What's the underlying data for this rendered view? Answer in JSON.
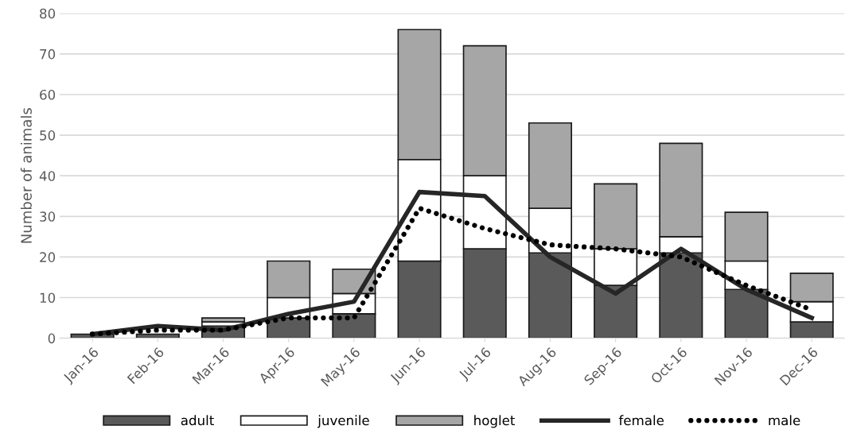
{
  "chart_data": {
    "type": "bar",
    "stacked": true,
    "ylabel": "Number of animals",
    "categories": [
      "Jan-16",
      "Feb-16",
      "Mar-16",
      "Apr-16",
      "May-16",
      "Jun-16",
      "Jul-16",
      "Aug-16",
      "Sep-16",
      "Oct-16",
      "Nov-16",
      "Dec-16"
    ],
    "series": [
      {
        "name": "adult",
        "color": "#5a5a5a",
        "values": [
          1,
          1,
          3,
          5,
          6,
          19,
          22,
          21,
          13,
          21,
          12,
          4
        ]
      },
      {
        "name": "juvenile",
        "color": "#ffffff",
        "values": [
          null,
          null,
          1,
          5,
          5,
          25,
          18,
          11,
          9,
          4,
          7,
          5
        ]
      },
      {
        "name": "hoglet",
        "color": "#a6a6a6",
        "values": [
          null,
          null,
          1,
          9,
          6,
          32,
          32,
          21,
          16,
          23,
          12,
          7
        ]
      },
      {
        "name": "female",
        "type": "line",
        "color": "#262626",
        "line_style": "solid",
        "values": [
          1,
          3,
          2,
          6,
          9,
          36,
          35,
          20,
          11,
          22,
          12,
          5
        ]
      },
      {
        "name": "male",
        "type": "line",
        "color": "#000000",
        "line_style": "dotted",
        "values": [
          1,
          2,
          2,
          5,
          5,
          32,
          27,
          23,
          22,
          20,
          13,
          7
        ]
      }
    ],
    "ylim": [
      0,
      80
    ],
    "yticks": [
      0,
      10,
      20,
      30,
      40,
      50,
      60,
      70,
      80
    ],
    "grid": "y",
    "legend": "bottom"
  }
}
